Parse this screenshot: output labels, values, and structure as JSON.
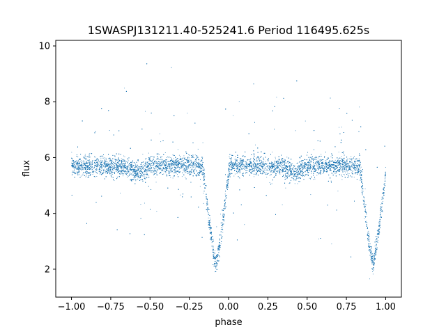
{
  "chart_data": {
    "type": "scatter",
    "title": "1SWASPJ131211.40-525241.6 Period 116495.625s",
    "xlabel": "phase",
    "ylabel": "flux",
    "xlim": [
      -1.1,
      1.1
    ],
    "ylim": [
      1.0,
      10.2
    ],
    "xticks": [
      -1.0,
      -0.75,
      -0.5,
      -0.25,
      0.0,
      0.25,
      0.5,
      0.75,
      1.0
    ],
    "xtick_labels": [
      "−1.00",
      "−0.75",
      "−0.50",
      "−0.25",
      "0.00",
      "0.25",
      "0.50",
      "0.75",
      "1.00"
    ],
    "yticks": [
      2,
      4,
      6,
      8,
      10
    ],
    "ytick_labels": [
      "2",
      "4",
      "6",
      "8",
      "10"
    ],
    "grid": false,
    "marker_color": "#1f77b4",
    "series": [
      {
        "x_range": [
          -1.0,
          1.0
        ],
        "baseline_flux": 5.7,
        "eclipse_centers": [
          -0.08,
          0.92
        ],
        "eclipse_min_flux": 2.2,
        "secondary_dip_centers": [
          -0.58,
          0.42
        ],
        "secondary_dip_flux": 5.45,
        "n_points": 14000
      }
    ]
  }
}
